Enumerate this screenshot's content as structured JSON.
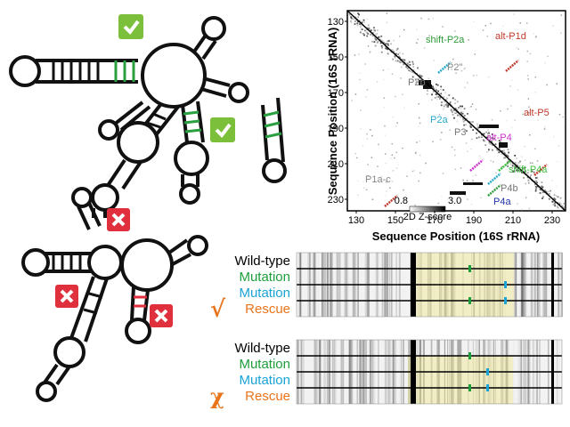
{
  "contact_map": {
    "ylabel": "Sequence Position (16S rRNA)",
    "xlabel": "Sequence Position (16S rRNA)",
    "x_ticks": [
      "130",
      "150",
      "170",
      "190",
      "210",
      "230"
    ],
    "y_ticks": [
      "130",
      "150",
      "170",
      "190",
      "210",
      "230"
    ],
    "annotations": [
      {
        "text": "shift-P2a",
        "color": "#2e9b3a"
      },
      {
        "text": "alt-P1d",
        "color": "#c0392b"
      },
      {
        "text": "P2\"",
        "color": "#888888"
      },
      {
        "text": "P2b",
        "color": "#777777"
      },
      {
        "text": "P2a",
        "color": "#27a9c9"
      },
      {
        "text": "alt-P5",
        "color": "#c0392b"
      },
      {
        "text": "P3",
        "color": "#777777"
      },
      {
        "text": "alt-P4",
        "color": "#cc33cc"
      },
      {
        "text": "shift-P4a",
        "color": "#3cbf3c"
      },
      {
        "text": "P4b",
        "color": "#777777"
      },
      {
        "text": "P4a",
        "color": "#2233aa"
      },
      {
        "text": "P1a-c",
        "color": "#888888"
      }
    ],
    "colorbar": {
      "min": "0.8",
      "max": "3.0",
      "label": "2D Z-score"
    }
  },
  "panels": [
    {
      "rows": [
        {
          "label": "Wild-type",
          "color": "#000000"
        },
        {
          "label": "Mutation",
          "color": "#1e9e3a"
        },
        {
          "label": "Mutation",
          "color": "#1aa3d6"
        },
        {
          "label": "Rescue",
          "color": "#e8741c"
        }
      ],
      "symbol": "√",
      "symbol_color": "#e8741c"
    },
    {
      "rows": [
        {
          "label": "Wild-type",
          "color": "#000000"
        },
        {
          "label": "Mutation",
          "color": "#1e9e3a"
        },
        {
          "label": "Mutation",
          "color": "#1aa3d6"
        },
        {
          "label": "Rescue",
          "color": "#e8741c"
        }
      ],
      "symbol": "χ",
      "symbol_color": "#e8741c"
    }
  ],
  "badges": {
    "check_color": "#7cbf3a",
    "cross_color": "#e0303e"
  }
}
